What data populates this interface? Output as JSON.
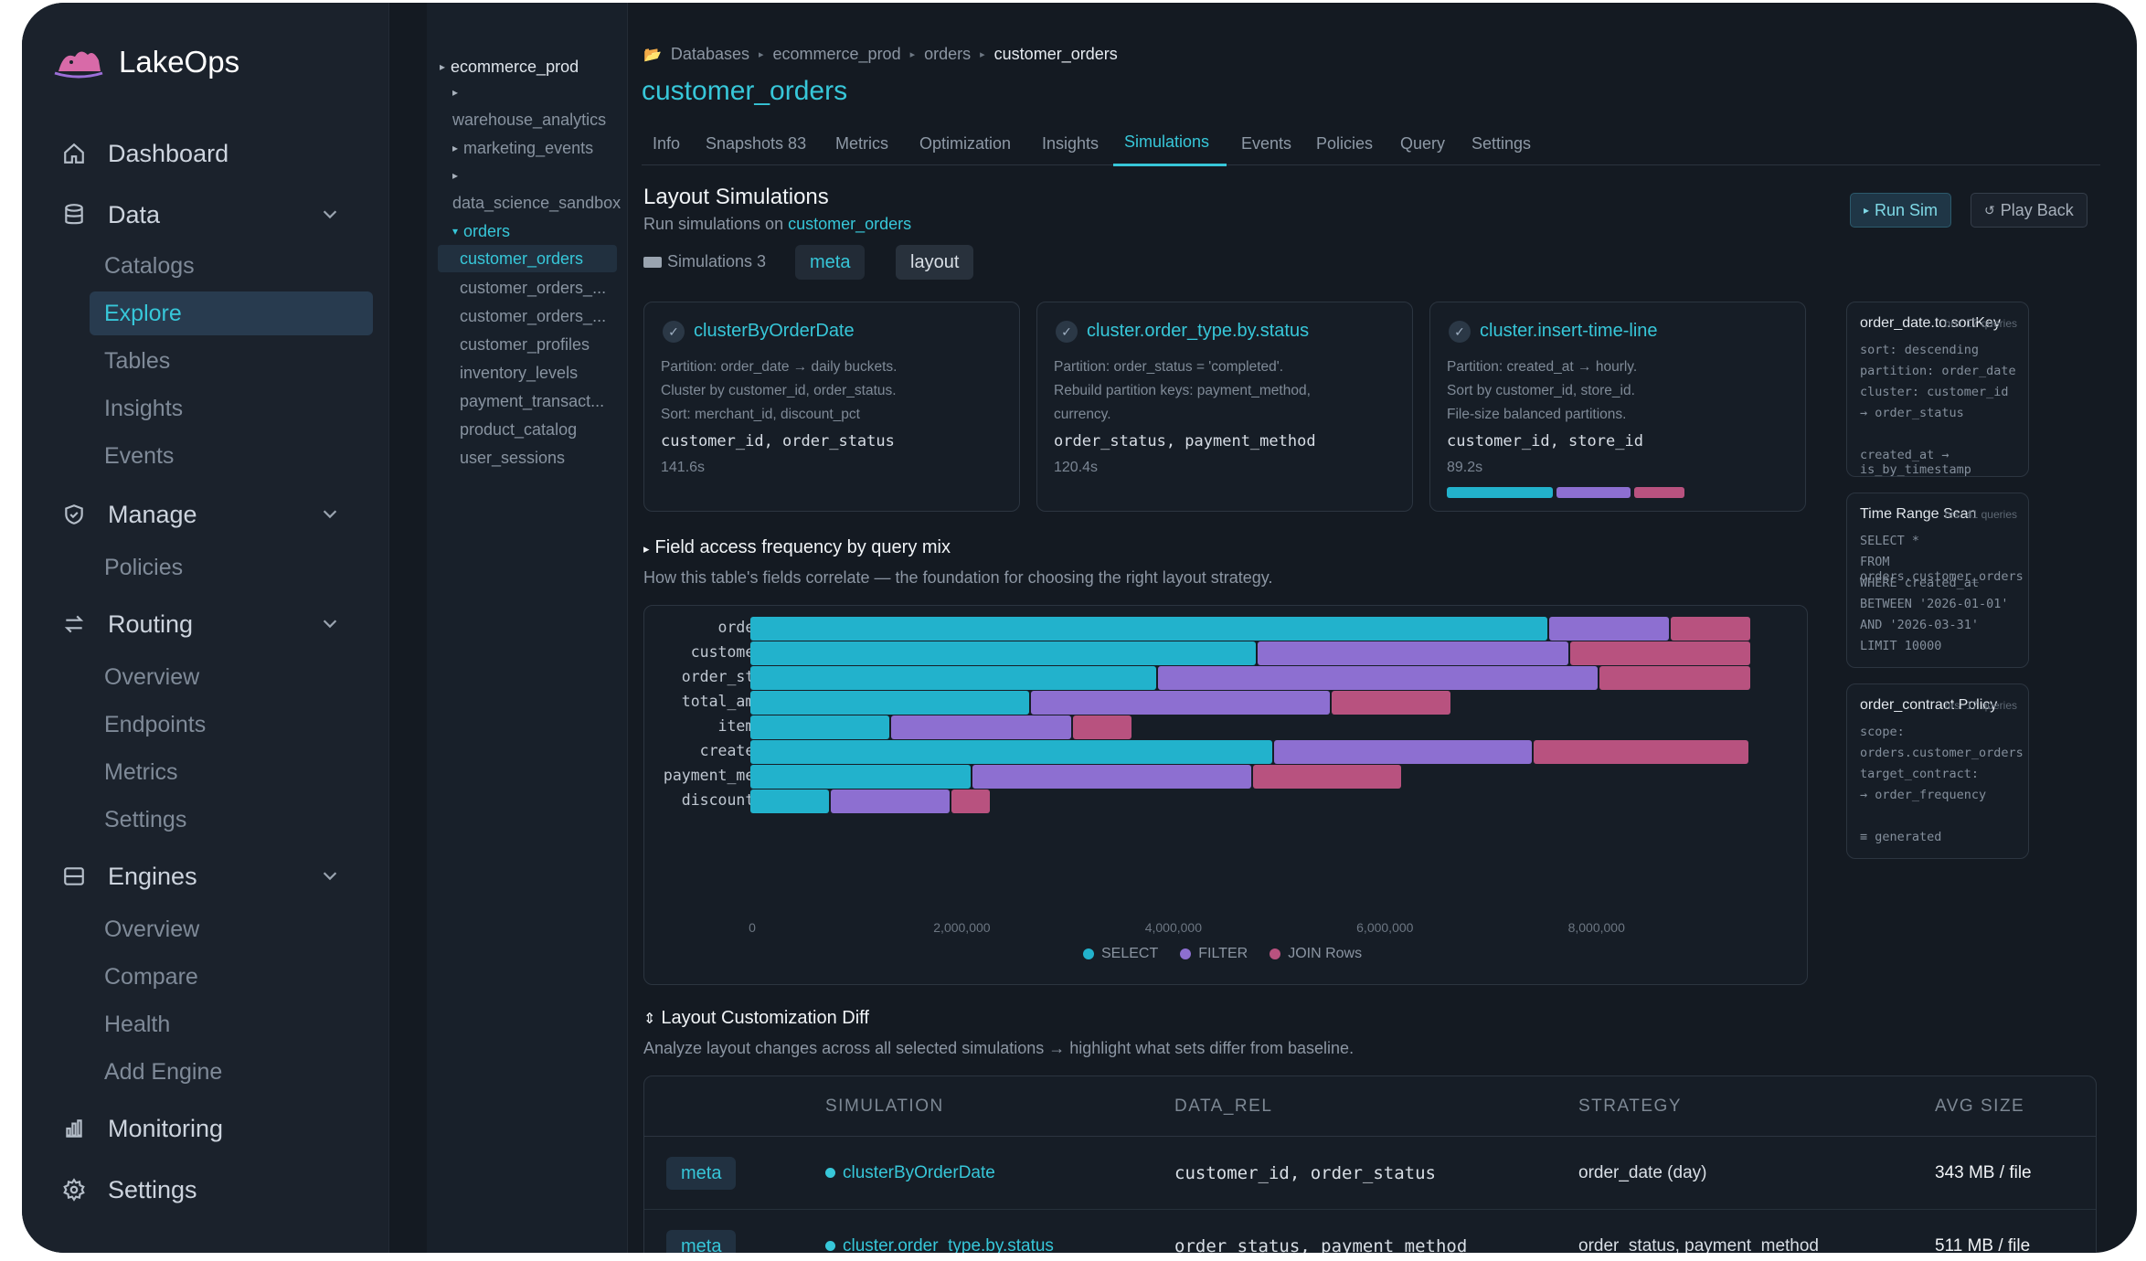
{
  "app": {
    "name": "LakeOps"
  },
  "sidebar": {
    "sections": [
      {
        "label": "Dashboard",
        "icon": "home-icon"
      },
      {
        "label": "Data",
        "icon": "database-icon",
        "children": [
          "Catalogs",
          "Explore",
          "Tables",
          "Insights",
          "Events"
        ],
        "active": "Explore"
      },
      {
        "label": "Manage",
        "icon": "shield-icon",
        "children": [
          "Policies"
        ]
      },
      {
        "label": "Routing",
        "icon": "swap-arrows-icon",
        "children": [
          "Overview",
          "Endpoints",
          "Metrics",
          "Settings"
        ]
      },
      {
        "label": "Engines",
        "icon": "engine-icon",
        "children": [
          "Overview",
          "Compare",
          "Health",
          "Add Engine"
        ]
      },
      {
        "label": "Monitoring",
        "icon": "bar-chart-icon"
      },
      {
        "label": "Settings",
        "icon": "gear-icon"
      }
    ]
  },
  "tree": {
    "root": "ecommerce_prod",
    "items": [
      "warehouse_analytics",
      "marketing_events",
      "data_science_sandbox"
    ],
    "open": "orders",
    "tables": [
      "customer_orders",
      "customer_orders_...",
      "customer_orders_...",
      "customer_profiles",
      "inventory_levels",
      "payment_transact...",
      "product_catalog",
      "user_sessions"
    ]
  },
  "breadcrumb": [
    "Databases",
    "ecommerce_prod",
    "orders",
    "customer_orders"
  ],
  "page_title": "customer_orders",
  "tabs": [
    "Info",
    "Snapshots 83",
    "Metrics",
    "Optimization",
    "Insights",
    "Simulations",
    "Events",
    "Policies",
    "Query",
    "Settings"
  ],
  "active_tab": "Simulations",
  "section": {
    "title": "Layout Simulations",
    "subtitle_prefix": "Run simulations on ",
    "subtitle_link": "customer_orders",
    "run_label": "Run Sim",
    "playback_label": "Play Back",
    "sim_count_label": "Simulations 3",
    "chips": [
      "meta",
      "layout"
    ]
  },
  "sim_cards": [
    {
      "name": "clusterByOrderDate",
      "desc": [
        "Partition: order_date → daily buckets.",
        "Cluster by customer_id, order_status.",
        "Sort: merchant_id, discount_pct"
      ],
      "keys": "customer_id, order_status",
      "time": "141.6s"
    },
    {
      "name": "cluster.order_type.by.status",
      "desc": [
        "Partition: order_status = 'completed'.",
        "Rebuild partition keys: payment_method,",
        "currency."
      ],
      "keys": "order_status, payment_method",
      "time": "120.4s"
    },
    {
      "name": "cluster.insert-time-line",
      "desc": [
        "Partition: created_at → hourly.",
        "Sort by customer_id, store_id.",
        "File-size balanced partitions."
      ],
      "keys": "customer_id, store_id",
      "time": "89.2s",
      "progress": [
        0.46,
        0.32,
        0.22
      ]
    }
  ],
  "side_cards": [
    {
      "title": "order_date.to.sortKey",
      "meta": "hrs: 17 queries",
      "lines": [
        "sort: descending",
        "partition: order_date",
        "cluster: customer_id",
        "→ order_status",
        "",
        "created_at → is_by_timestamp"
      ]
    },
    {
      "title": "Time Range Scan",
      "meta": "hrs: 41 queries",
      "lines": [
        "SELECT *",
        "FROM orders.customer_orders",
        "WHERE created_at",
        "BETWEEN '2026-01-01'",
        "AND '2026-03-31'",
        "LIMIT 10000"
      ]
    },
    {
      "title": "order_contract Policy",
      "meta": "hrs: 17 queries",
      "lines": [
        "scope:",
        "orders.customer_orders",
        "target_contract:",
        "→ order_frequency",
        "",
        "≡ generated"
      ]
    }
  ],
  "freq": {
    "title": "Field access frequency by query mix",
    "subtitle": "How this table's fields correlate — the foundation for choosing the right layout strategy."
  },
  "chart_data": {
    "type": "bar",
    "orientation": "horizontal",
    "stacked": true,
    "categories": [
      "order_id",
      "customer_id",
      "order_status",
      "total_amount",
      "item_ids",
      "created_at",
      "payment_method",
      "discount_pct"
    ],
    "series": [
      {
        "name": "SELECT",
        "values": [
          7550000,
          4800000,
          3850000,
          2650000,
          1330000,
          4950000,
          2100000,
          760000
        ],
        "color": "#22b2cc"
      },
      {
        "name": "FILTER",
        "values": [
          1150000,
          2950000,
          4180000,
          2850000,
          1720000,
          2460000,
          2650000,
          1140000
        ],
        "color": "#8d6fd1"
      },
      {
        "name": "JOIN Rows",
        "values": [
          770000,
          1720000,
          1440000,
          1140000,
          570000,
          2040000,
          1420000,
          380000
        ],
        "color": "#b8527f"
      }
    ],
    "xticks": [
      "0",
      "2,000,000",
      "4,000,000",
      "6,000,000",
      "8,000,000"
    ],
    "xlim": [
      0,
      9480000
    ],
    "legend": "bottom-center"
  },
  "diff": {
    "title": "Layout Customization Diff",
    "subtitle": "Analyze layout changes across all selected simulations → highlight what sets differ from baseline.",
    "columns": [
      "SIMULATION",
      "DATA_REL",
      "STRATEGY",
      "AVG SIZE"
    ],
    "rows": [
      {
        "badge": "meta",
        "simulation": "clusterByOrderDate",
        "data_rel": "customer_id, order_status",
        "strategy": "order_date (day)",
        "avg_size": "343 MB / file"
      },
      {
        "badge": "meta",
        "simulation": "cluster.order_type.by.status",
        "data_rel": "order_status, payment_method",
        "strategy": "order_status, payment_method",
        "avg_size": "511 MB / file"
      }
    ]
  }
}
